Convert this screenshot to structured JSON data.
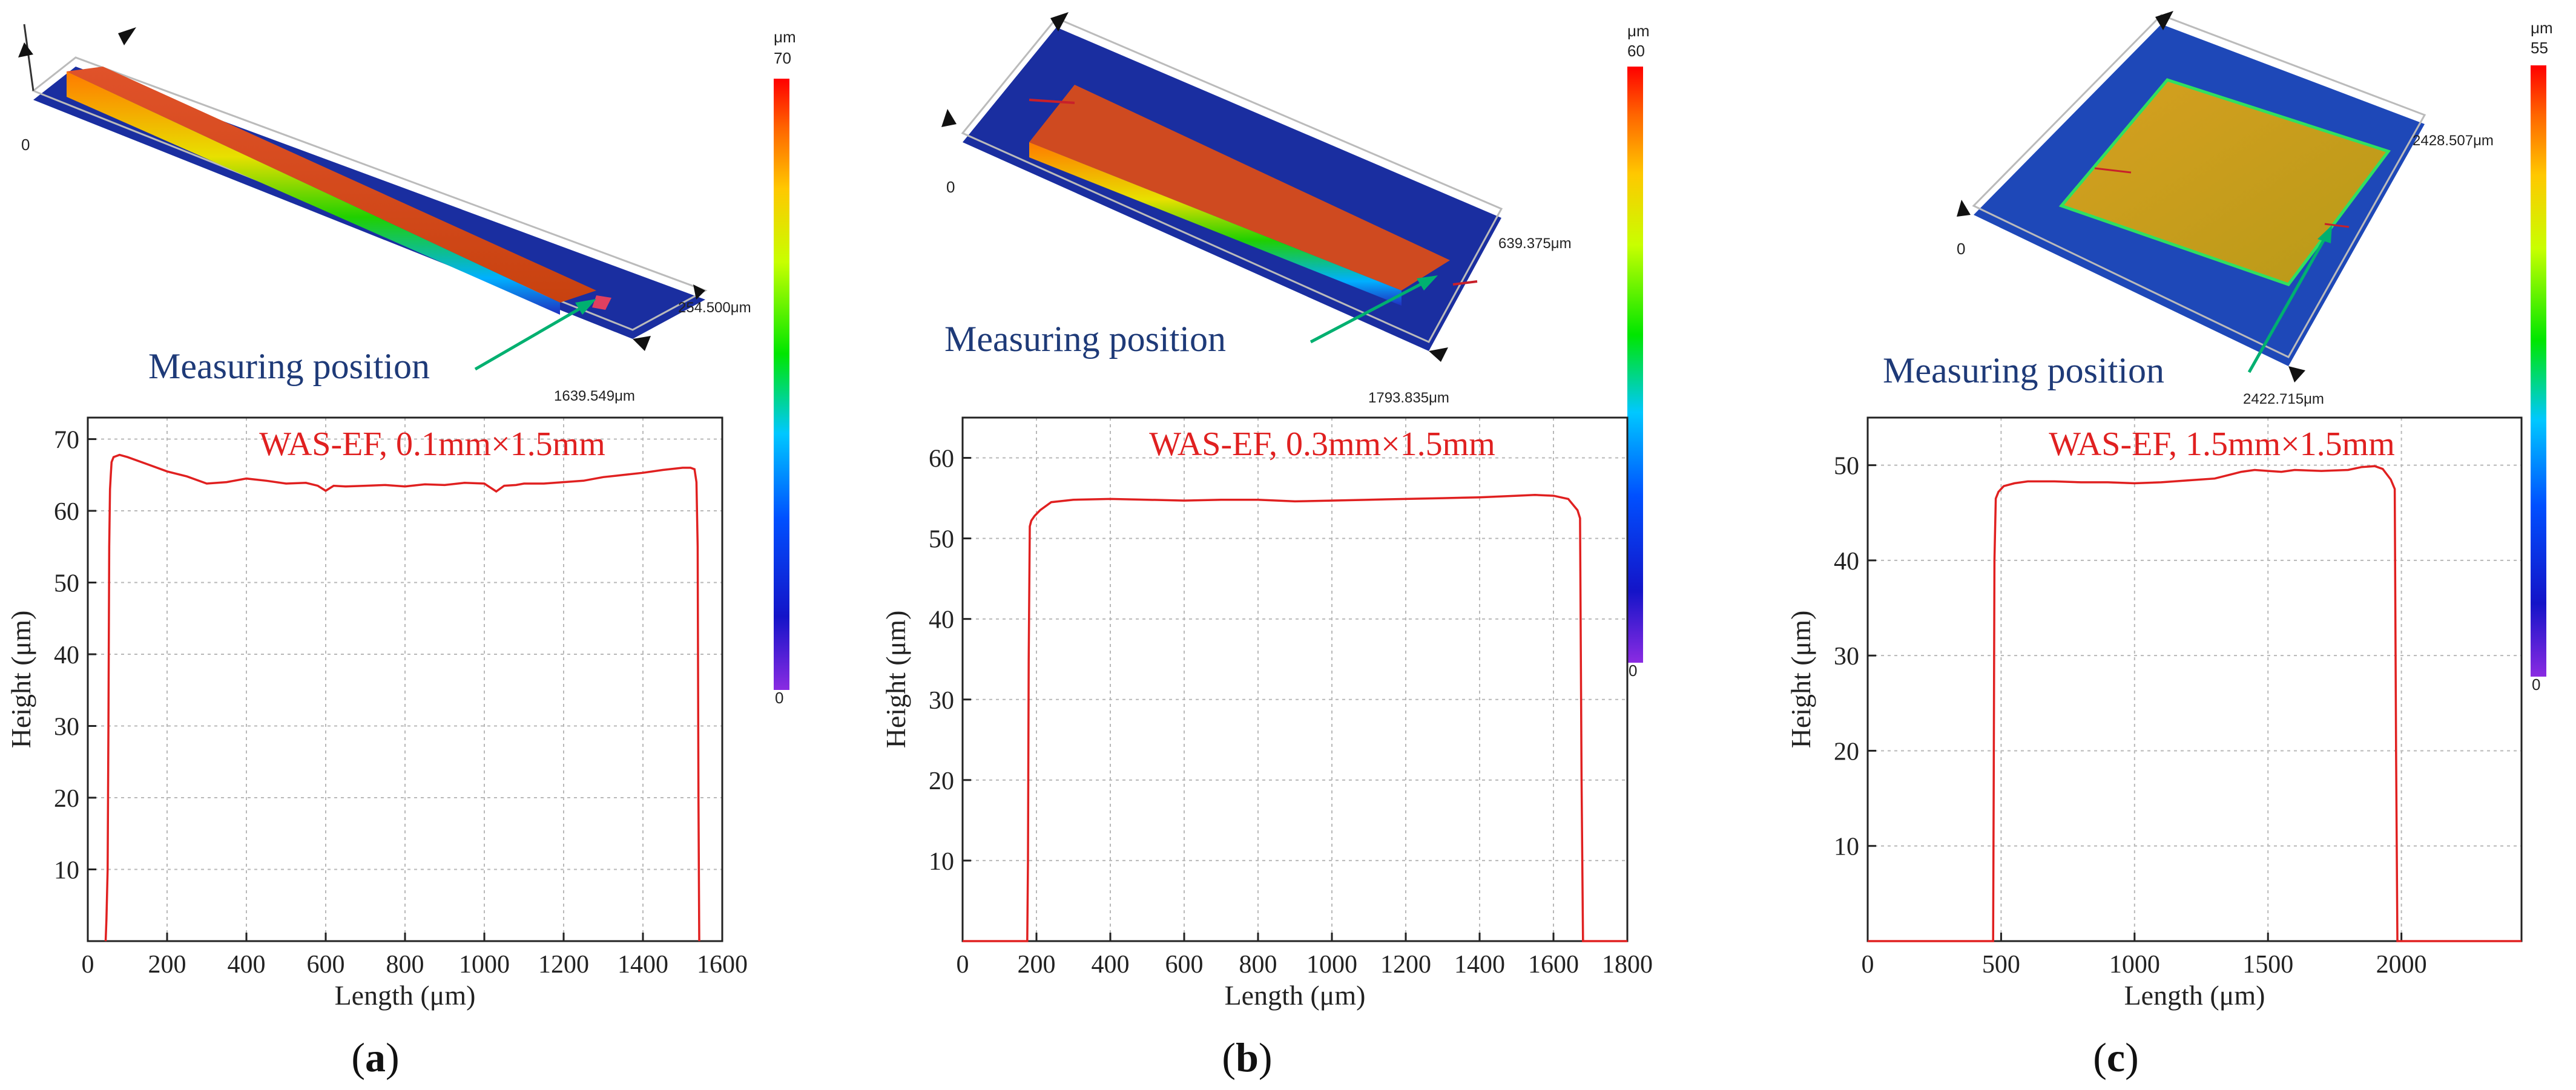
{
  "panels": [
    {
      "id": "a",
      "panel_label": "(a)",
      "panel_label_letter": "a",
      "measuring_label": "Measuring position",
      "surface_dim_width": "254.500μm",
      "surface_dim_length": "1639.549μm",
      "surface_origin": "0",
      "colorbar": {
        "unit": "μm",
        "max": "70",
        "min": "0"
      }
    },
    {
      "id": "b",
      "panel_label": "(b)",
      "panel_label_letter": "b",
      "measuring_label": "Measuring position",
      "surface_dim_width": "639.375μm",
      "surface_dim_length": "1793.835μm",
      "surface_origin": "0",
      "colorbar": {
        "unit": "μm",
        "max": "60",
        "min": "0"
      }
    },
    {
      "id": "c",
      "panel_label": "(c)",
      "panel_label_letter": "c",
      "measuring_label": "Measuring position",
      "surface_dim_width": "2428.507μm",
      "surface_dim_length": "2422.715μm",
      "surface_origin": "0",
      "colorbar": {
        "unit": "μm",
        "max": "55",
        "min": "0"
      }
    }
  ],
  "chart_data": [
    {
      "type": "line",
      "title": "WAS-EF, 0.1mm×1.5mm",
      "xlabel": "Length (μm)",
      "ylabel": "Height (μm)",
      "xlim": [
        0,
        1600
      ],
      "ylim": [
        0,
        73
      ],
      "xticks": [
        0,
        200,
        400,
        600,
        800,
        1000,
        1200,
        1400,
        1600
      ],
      "yticks": [
        10,
        20,
        30,
        40,
        50,
        60,
        70
      ],
      "grid": true,
      "series": [
        {
          "name": "profile",
          "x": [
            45,
            47,
            50,
            52,
            54,
            56,
            58,
            60,
            65,
            80,
            100,
            150,
            200,
            250,
            300,
            350,
            400,
            450,
            500,
            550,
            580,
            600,
            620,
            650,
            700,
            750,
            800,
            850,
            900,
            950,
            1000,
            1030,
            1050,
            1080,
            1100,
            1150,
            1200,
            1250,
            1300,
            1350,
            1400,
            1450,
            1500,
            1520,
            1530,
            1535,
            1538,
            1540,
            1542
          ],
          "y": [
            0,
            3,
            10,
            30,
            55,
            63,
            65,
            66.8,
            67.5,
            67.8,
            67.5,
            66.5,
            65.5,
            64.8,
            63.8,
            64,
            64.5,
            64.2,
            63.8,
            63.9,
            63.5,
            62.8,
            63.5,
            63.4,
            63.5,
            63.6,
            63.4,
            63.7,
            63.6,
            63.9,
            63.8,
            62.7,
            63.5,
            63.6,
            63.8,
            63.8,
            64,
            64.2,
            64.7,
            65,
            65.3,
            65.7,
            66,
            66,
            65.8,
            64,
            55,
            20,
            0
          ]
        }
      ]
    },
    {
      "type": "line",
      "title": "WAS-EF, 0.3mm×1.5mm",
      "xlabel": "Length (μm)",
      "ylabel": "Height (μm)",
      "xlim": [
        0,
        1800
      ],
      "ylim": [
        0,
        65
      ],
      "xticks": [
        0,
        200,
        400,
        600,
        800,
        1000,
        1200,
        1400,
        1600,
        1800
      ],
      "yticks": [
        10,
        20,
        30,
        40,
        50,
        60
      ],
      "grid": true,
      "series": [
        {
          "name": "profile",
          "x": [
            0,
            175,
            177,
            179,
            182,
            186,
            195,
            210,
            240,
            300,
            400,
            500,
            600,
            700,
            800,
            900,
            1000,
            1100,
            1200,
            1300,
            1400,
            1500,
            1550,
            1600,
            1640,
            1665,
            1672,
            1676,
            1680,
            1800
          ],
          "y": [
            0,
            0,
            10,
            35,
            51.5,
            52.2,
            52.8,
            53.5,
            54.5,
            54.8,
            54.9,
            54.8,
            54.7,
            54.8,
            54.8,
            54.6,
            54.7,
            54.8,
            54.9,
            55.0,
            55.1,
            55.3,
            55.4,
            55.3,
            54.9,
            53.5,
            52.5,
            20,
            0,
            0
          ]
        }
      ]
    },
    {
      "type": "line",
      "title": "WAS-EF, 1.5mm×1.5mm",
      "xlabel": "Length (μm)",
      "ylabel": "Height (μm)",
      "xlim": [
        0,
        2450
      ],
      "ylim": [
        0,
        55
      ],
      "xticks": [
        0,
        500,
        1000,
        1500,
        2000
      ],
      "yticks": [
        10,
        20,
        30,
        40,
        50
      ],
      "grid": true,
      "series": [
        {
          "name": "profile",
          "x": [
            0,
            470,
            472,
            475,
            480,
            490,
            510,
            550,
            600,
            700,
            800,
            900,
            1000,
            1100,
            1200,
            1300,
            1400,
            1450,
            1500,
            1550,
            1600,
            1700,
            1800,
            1850,
            1900,
            1930,
            1960,
            1975,
            1980,
            1985,
            2450
          ],
          "y": [
            0,
            0,
            15,
            40,
            46.5,
            47.2,
            47.8,
            48.1,
            48.3,
            48.3,
            48.2,
            48.2,
            48.1,
            48.2,
            48.4,
            48.6,
            49.3,
            49.5,
            49.4,
            49.3,
            49.5,
            49.4,
            49.5,
            49.8,
            49.9,
            49.6,
            48.5,
            47.5,
            20,
            0,
            0
          ]
        }
      ]
    }
  ]
}
